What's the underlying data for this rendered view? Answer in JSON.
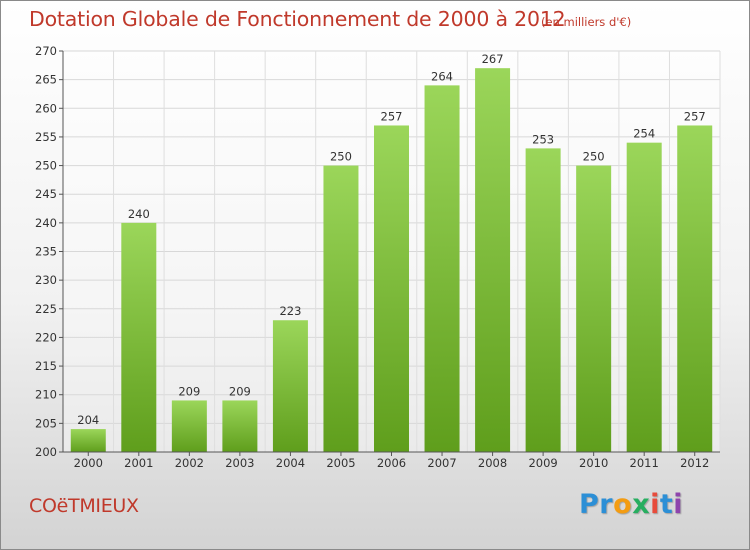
{
  "header": {
    "title": "Dotation Globale de Fonctionnement de 2000 à 2012",
    "units": "(en milliers d'€)"
  },
  "footer": {
    "commune": "COëTMIEUX",
    "brand_letters": [
      "P",
      "r",
      "o",
      "x",
      "i",
      "t",
      "i"
    ]
  },
  "colors": {
    "title": "#c0392b",
    "bar_light": "#9bd65a",
    "bar_dark": "#5f9e1c",
    "brand": [
      "#2c8fd6",
      "#2c8fd6",
      "#f39c12",
      "#27ae60",
      "#e74c3c",
      "#2c8fd6",
      "#8e44ad"
    ]
  },
  "chart_data": {
    "type": "bar",
    "title": "Dotation Globale de Fonctionnement de 2000 à 2012",
    "subtitle": "(en milliers d'€)",
    "categories": [
      "2000",
      "2001",
      "2002",
      "2003",
      "2004",
      "2005",
      "2006",
      "2007",
      "2008",
      "2009",
      "2010",
      "2011",
      "2012"
    ],
    "values": [
      204,
      240,
      209,
      209,
      223,
      250,
      257,
      264,
      267,
      253,
      250,
      254,
      257
    ],
    "ylim": [
      200,
      270
    ],
    "yticks": [
      200,
      205,
      210,
      215,
      220,
      225,
      230,
      235,
      240,
      245,
      250,
      255,
      260,
      265,
      270
    ],
    "xlabel": "",
    "ylabel": "",
    "grid": true,
    "data_labels": true
  }
}
